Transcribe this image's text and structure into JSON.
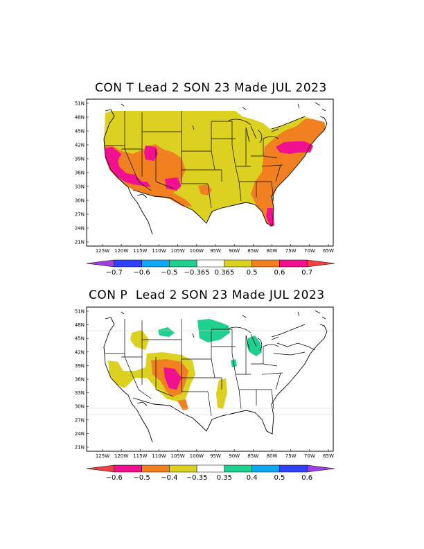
{
  "map1": {
    "title": "CON T Lead 2 SON 23 Made JUL 2023",
    "lat_labels": [
      "51N",
      "48N",
      "45N",
      "42N",
      "39N",
      "36N",
      "33N",
      "30N",
      "27N",
      "24N",
      "21N"
    ],
    "lon_labels": [
      "125W",
      "120W",
      "115W",
      "110W",
      "105W",
      "100W",
      "95W",
      "90W",
      "85W",
      "80W",
      "75W",
      "70W",
      "65W"
    ],
    "colorbar": {
      "labels": [
        "−0.7",
        "−0.6",
        "−0.5",
        "−0.365",
        "0.365",
        "0.5",
        "0.6",
        "0.7"
      ],
      "colors": [
        "#a040e0",
        "#3040ff",
        "#10a8f0",
        "#20d090",
        "#ffffff",
        "#dcd020",
        "#f08020",
        "#f01090",
        "#f04040"
      ]
    }
  },
  "map2": {
    "title": "CON P  Lead 2 SON 23 Made JUL 2023",
    "lat_labels": [
      "51N",
      "48N",
      "45N",
      "42N",
      "39N",
      "36N",
      "33N",
      "30N",
      "27N",
      "24N",
      "21N"
    ],
    "lon_labels": [
      "125W",
      "120W",
      "115W",
      "110W",
      "105W",
      "100W",
      "95W",
      "90W",
      "85W",
      "80W",
      "75W",
      "70W",
      "65W"
    ],
    "colorbar": {
      "labels": [
        "−0.6",
        "−0.5",
        "−0.4",
        "−0.35",
        "0.35",
        "0.4",
        "0.5",
        "0.6"
      ],
      "colors": [
        "#f04040",
        "#f01090",
        "#f08020",
        "#dcd020",
        "#ffffff",
        "#20d090",
        "#10a8f0",
        "#3040ff",
        "#a040e0"
      ]
    }
  }
}
